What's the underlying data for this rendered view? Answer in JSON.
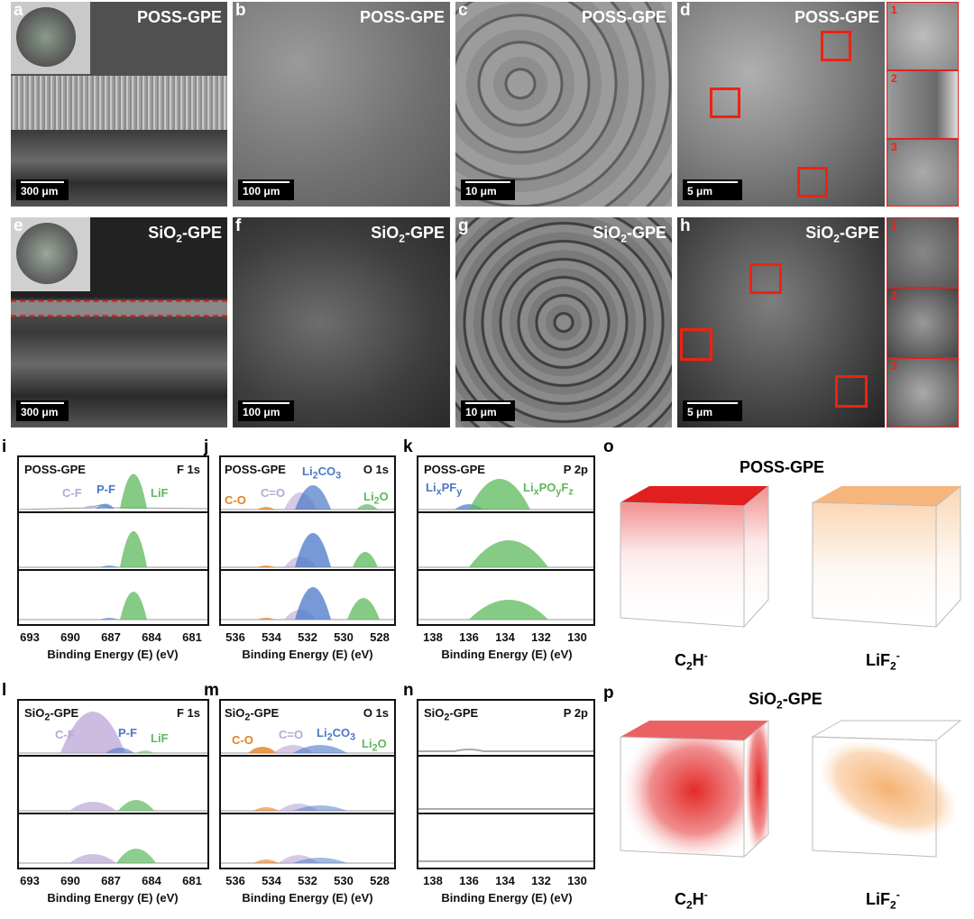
{
  "sem": {
    "a": {
      "letter": "a",
      "title": "POSS-GPE",
      "scale": "300 μm"
    },
    "b": {
      "letter": "b",
      "title": "POSS-GPE",
      "scale": "100 μm"
    },
    "c": {
      "letter": "c",
      "title": "POSS-GPE",
      "scale": "10 μm"
    },
    "d": {
      "letter": "d",
      "title": "POSS-GPE",
      "scale": "5 μm",
      "insets": [
        "1",
        "2",
        "3"
      ]
    },
    "e": {
      "letter": "e",
      "title": "SiO",
      "title_sub": "2",
      "title_tail": "-GPE",
      "scale": "300 μm"
    },
    "f": {
      "letter": "f",
      "title": "SiO",
      "title_sub": "2",
      "title_tail": "-GPE",
      "scale": "100 μm"
    },
    "g": {
      "letter": "g",
      "title": "SiO",
      "title_sub": "2",
      "title_tail": "-GPE",
      "scale": "10 μm"
    },
    "h": {
      "letter": "h",
      "title": "SiO",
      "title_sub": "2",
      "title_tail": "-GPE",
      "scale": "5 μm",
      "insets": [
        "1",
        "2",
        "3"
      ]
    }
  },
  "xps": {
    "i": {
      "letter": "i",
      "sample": "POSS-GPE",
      "core": "F 1s",
      "ticks": [
        "693",
        "690",
        "687",
        "684",
        "681"
      ],
      "xlabel": "Binding Energy (E) (eV)",
      "peaks": [
        {
          "t": "C-F",
          "c": "#b9a6d6"
        },
        {
          "t": "P-F",
          "c": "#4a78c8"
        },
        {
          "t": "LiF",
          "c": "#5cb85c"
        }
      ]
    },
    "j": {
      "letter": "j",
      "sample": "POSS-GPE",
      "core": "O 1s",
      "ticks": [
        "536",
        "534",
        "532",
        "530",
        "528"
      ],
      "xlabel": "Binding Energy (E) (eV)",
      "peaks": [
        {
          "t": "C-O",
          "c": "#e67e22"
        },
        {
          "t": "C=O",
          "c": "#b9a6d6"
        },
        {
          "t": "Li2CO3",
          "c": "#4a78c8"
        },
        {
          "t": "Li2O",
          "c": "#5cb85c"
        }
      ]
    },
    "k": {
      "letter": "k",
      "sample": "POSS-GPE",
      "core": "P 2p",
      "ticks": [
        "138",
        "136",
        "134",
        "132",
        "130"
      ],
      "xlabel": "Binding Energy (E) (eV)",
      "peaks": [
        {
          "t": "LixPFy",
          "c": "#4a78c8"
        },
        {
          "t": "LixPOyFz",
          "c": "#5cb85c"
        }
      ]
    },
    "l": {
      "letter": "l",
      "sample": "SiO2-GPE",
      "core": "F 1s",
      "ticks": [
        "693",
        "690",
        "687",
        "684",
        "681"
      ],
      "xlabel": "Binding Energy (E) (eV)",
      "peaks": [
        {
          "t": "C-F",
          "c": "#b9a6d6"
        },
        {
          "t": "P-F",
          "c": "#4a78c8"
        },
        {
          "t": "LiF",
          "c": "#5cb85c"
        }
      ]
    },
    "m": {
      "letter": "m",
      "sample": "SiO2-GPE",
      "core": "O 1s",
      "ticks": [
        "536",
        "534",
        "532",
        "530",
        "528"
      ],
      "xlabel": "Binding Energy (E) (eV)",
      "peaks": [
        {
          "t": "C-O",
          "c": "#e67e22"
        },
        {
          "t": "C=O",
          "c": "#b9a6d6"
        },
        {
          "t": "Li2CO3",
          "c": "#4a78c8"
        },
        {
          "t": "Li2O",
          "c": "#5cb85c"
        }
      ]
    },
    "n": {
      "letter": "n",
      "sample": "SiO2-GPE",
      "core": "P 2p",
      "ticks": [
        "138",
        "136",
        "134",
        "132",
        "130"
      ],
      "xlabel": "Binding Energy (E) (eV)",
      "peaks": []
    }
  },
  "tof": {
    "o": {
      "letter": "o",
      "title": "POSS-GPE",
      "left": "C2H-",
      "right": "LiF2-"
    },
    "p": {
      "letter": "p",
      "title": "SiO2-GPE",
      "left": "C2H-",
      "right": "LiF2-"
    }
  },
  "colors": {
    "red": "#e21f1f",
    "orange": "#f4a45a"
  }
}
